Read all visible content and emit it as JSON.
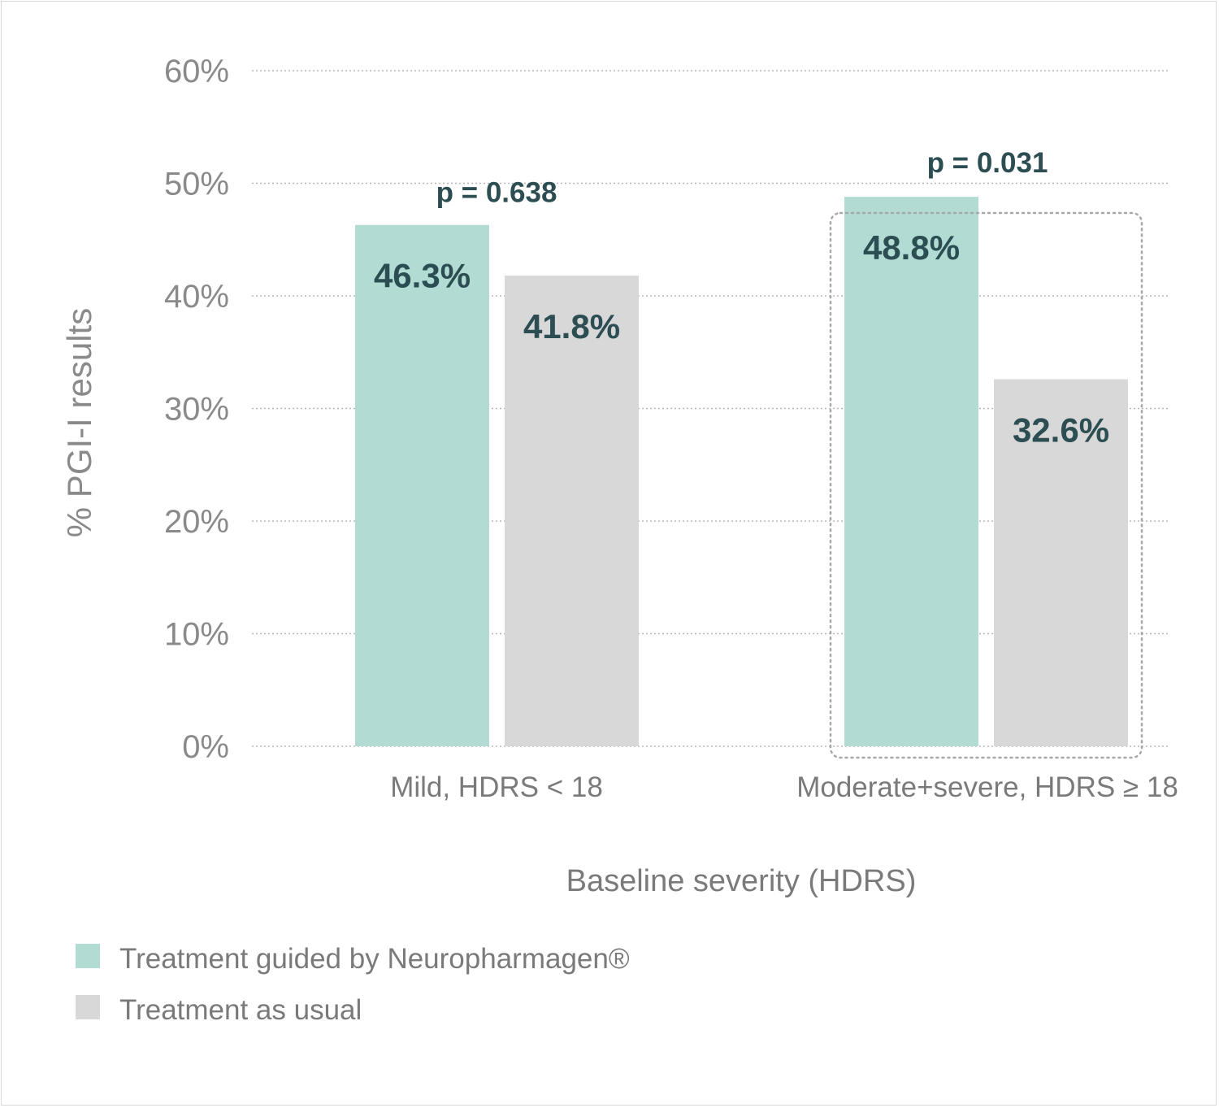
{
  "chart_data": {
    "type": "bar",
    "title": "",
    "xlabel": "Baseline severity (HDRS)",
    "ylabel": "% PGI-I results",
    "ylim": [
      0,
      60
    ],
    "yticks": [
      0,
      10,
      20,
      30,
      40,
      50,
      60
    ],
    "ytick_labels": [
      "0%",
      "10%",
      "20%",
      "30%",
      "40%",
      "50%",
      "60%"
    ],
    "grid": true,
    "categories": [
      "Mild, HDRS < 18",
      "Moderate+severe, HDRS ≥ 18"
    ],
    "series": [
      {
        "name": "Treatment guided by Neuropharmagen®",
        "values": [
          46.3,
          48.8
        ],
        "labels": [
          "46.3%",
          "48.8%"
        ],
        "color": "#b2dbd3"
      },
      {
        "name": "Treatment as usual",
        "values": [
          41.8,
          32.6
        ],
        "labels": [
          "41.8%",
          "32.6%"
        ],
        "color": "#d8d8d8"
      }
    ],
    "annotations": [
      {
        "category": 0,
        "text": "p = 0.638"
      },
      {
        "category": 1,
        "text": "p = 0.031",
        "highlighted": true
      }
    ],
    "legend": {
      "position": "bottom-left"
    }
  }
}
